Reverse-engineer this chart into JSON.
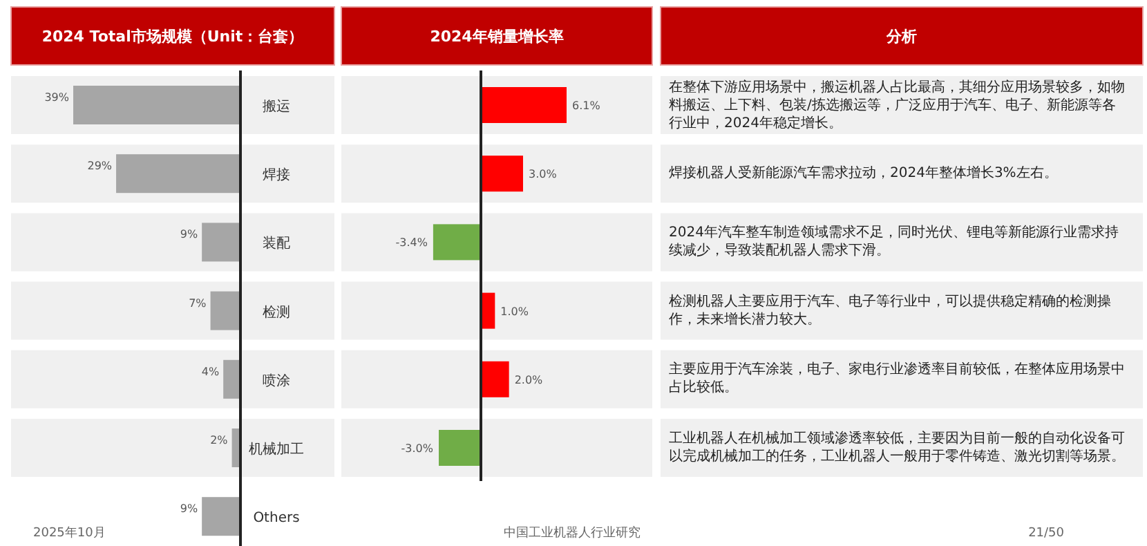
{
  "chart_data": [
    {
      "type": "bar",
      "orientation": "horizontal",
      "title": "2024 Total市场规模（Unit：台套）",
      "categories": [
        "搬运",
        "焊接",
        "装配",
        "检测",
        "喷涂",
        "机械加工",
        "Others"
      ],
      "values": [
        39,
        29,
        9,
        7,
        4,
        2,
        9
      ],
      "color": "#a6a6a6",
      "value_labels": [
        "39%",
        "29%",
        "9%",
        "7%",
        "4%",
        "2%",
        "9%"
      ],
      "annotations": [
        "2025年10月",
        "中国工业机器人行业研究",
        "21/50"
      ]
    },
    {
      "type": "bar",
      "orientation": "horizontal",
      "title": "2024年销量增长率",
      "categories": [
        "搬运",
        "焊接",
        "装配",
        "检测",
        "喷涂",
        "机械加工"
      ],
      "tick_labels": false,
      "values": [
        6.1,
        3.0,
        -3.4,
        1.0,
        2.0,
        -3.0
      ],
      "colors": [
        "#ff0000",
        "#ff0000",
        "#70ad47",
        "#ff0000",
        "#ff0000",
        "#70ad47"
      ],
      "value_labels": [
        "6.1%",
        "3.0%",
        "-3.4%",
        "1.0%",
        "2.0%",
        "-3.0%"
      ]
    },
    {
      "type": "other",
      "title": "分析",
      "annotations": [
        "在整体下游应用场景中，搬运机器人占比最高，其细分应用场景较多，如物料搬运、上下料、包装/拣选搬运等，广泛应用于汽车、电子、新能源等各行业中，2024年稳定增长。",
        "焊接机器人受新能源汽车需求拉动，2024年整体增长3%左右。",
        "2024年汽车整车制造领域需求不足，同时光伏、锂电等新能源行业需求持续减少，导致装配机器人需求下滑。",
        "检测机器人主要应用于汽车、电子等行业中，可以提供稳定精确的检测操作，未来增长潜力较大。",
        "主要应用于汽车涂装，电子、家电行业渗透率目前较低，在整体应用场景中占比较低。",
        "工业机器人在机械加工领域渗透率较低，主要因为目前一般的自动化设备可以完成机械加工的任务，工业机器人一般用于零件铸造、激光切割等场景。"
      ]
    }
  ]
}
